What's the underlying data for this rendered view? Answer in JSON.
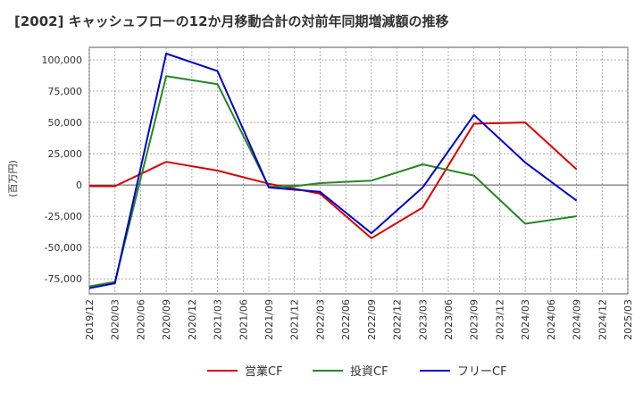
{
  "chart_data": {
    "type": "line",
    "title": "[2002]  キャッシュフローの12か月移動合計の対前年同期増減額の推移",
    "ylabel": "(百万円)",
    "xlabel": "",
    "ylim": [
      -87000,
      110000
    ],
    "yticks": [
      -75000,
      -50000,
      -25000,
      0,
      25000,
      50000,
      75000,
      100000
    ],
    "ytick_labels": [
      "-75,000",
      "-50,000",
      "-25,000",
      "0",
      "25,000",
      "50,000",
      "75,000",
      "100,000"
    ],
    "x_labels": [
      "2019/12",
      "2020/03",
      "2020/06",
      "2020/09",
      "2020/12",
      "2021/03",
      "2021/06",
      "2021/09",
      "2021/12",
      "2022/03",
      "2022/06",
      "2022/09",
      "2022/12",
      "2023/03",
      "2023/06",
      "2023/09",
      "2023/12",
      "2024/03",
      "2024/06",
      "2024/09",
      "2024/12",
      "2025/03"
    ],
    "grid": true,
    "legend_position": "bottom",
    "series": [
      {
        "name": "営業CF",
        "color": "#dd0000",
        "points": [
          [
            0,
            -1000
          ],
          [
            1,
            -1000
          ],
          [
            3,
            18500
          ],
          [
            5,
            11500
          ],
          [
            7,
            1000
          ],
          [
            9,
            -7000
          ],
          [
            11,
            -42500
          ],
          [
            13,
            -18000
          ],
          [
            15,
            49000
          ],
          [
            17,
            50000
          ],
          [
            19,
            12500
          ]
        ]
      },
      {
        "name": "投資CF",
        "color": "#228822",
        "points": [
          [
            0,
            -81000
          ],
          [
            1,
            -77500
          ],
          [
            3,
            87000
          ],
          [
            5,
            80500
          ],
          [
            7,
            -1500
          ],
          [
            8,
            -1000
          ],
          [
            9,
            1500
          ],
          [
            11,
            3500
          ],
          [
            13,
            16500
          ],
          [
            15,
            7500
          ],
          [
            17,
            -31000
          ],
          [
            19,
            -25000
          ]
        ]
      },
      {
        "name": "フリーCF",
        "color": "#0000cc",
        "points": [
          [
            0,
            -82500
          ],
          [
            1,
            -78500
          ],
          [
            3,
            105000
          ],
          [
            5,
            91000
          ],
          [
            7,
            -2000
          ],
          [
            9,
            -5500
          ],
          [
            11,
            -38500
          ],
          [
            13,
            -2000
          ],
          [
            15,
            56000
          ],
          [
            17,
            18000
          ],
          [
            19,
            -12500
          ]
        ]
      }
    ]
  }
}
